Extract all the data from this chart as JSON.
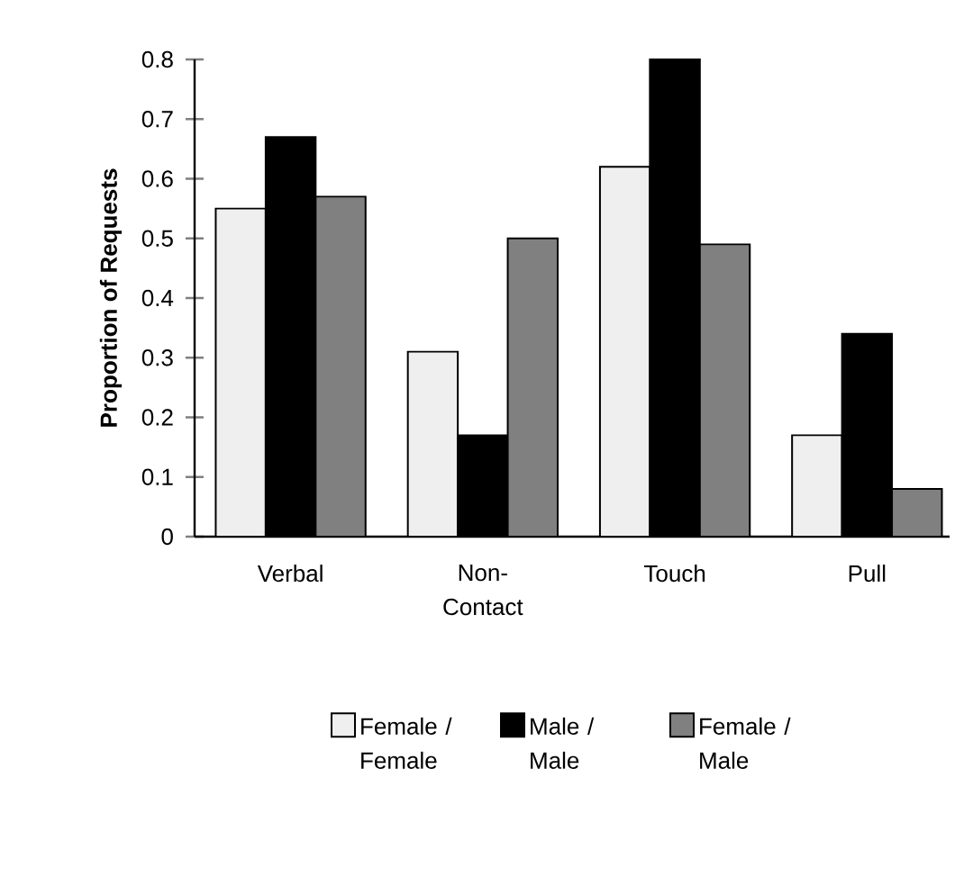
{
  "chart_data": {
    "type": "bar",
    "ylabel": "Proportion of Requests",
    "categories": [
      "Verbal",
      "Non-Contact",
      "Touch",
      "Pull"
    ],
    "series": [
      {
        "name": "Female / Female",
        "color": "#efefef",
        "values": [
          0.55,
          0.31,
          0.62,
          0.17
        ]
      },
      {
        "name": "Male / Male",
        "color": "#000000",
        "values": [
          0.67,
          0.17,
          0.8,
          0.34
        ]
      },
      {
        "name": "Female / Male",
        "color": "#808080",
        "values": [
          0.57,
          0.5,
          0.49,
          0.08
        ]
      }
    ],
    "ylim": [
      0,
      0.8
    ],
    "yticks": [
      0,
      0.1,
      0.2,
      0.3,
      0.4,
      0.5,
      0.6,
      0.7,
      0.8
    ],
    "legend": "bottom"
  }
}
